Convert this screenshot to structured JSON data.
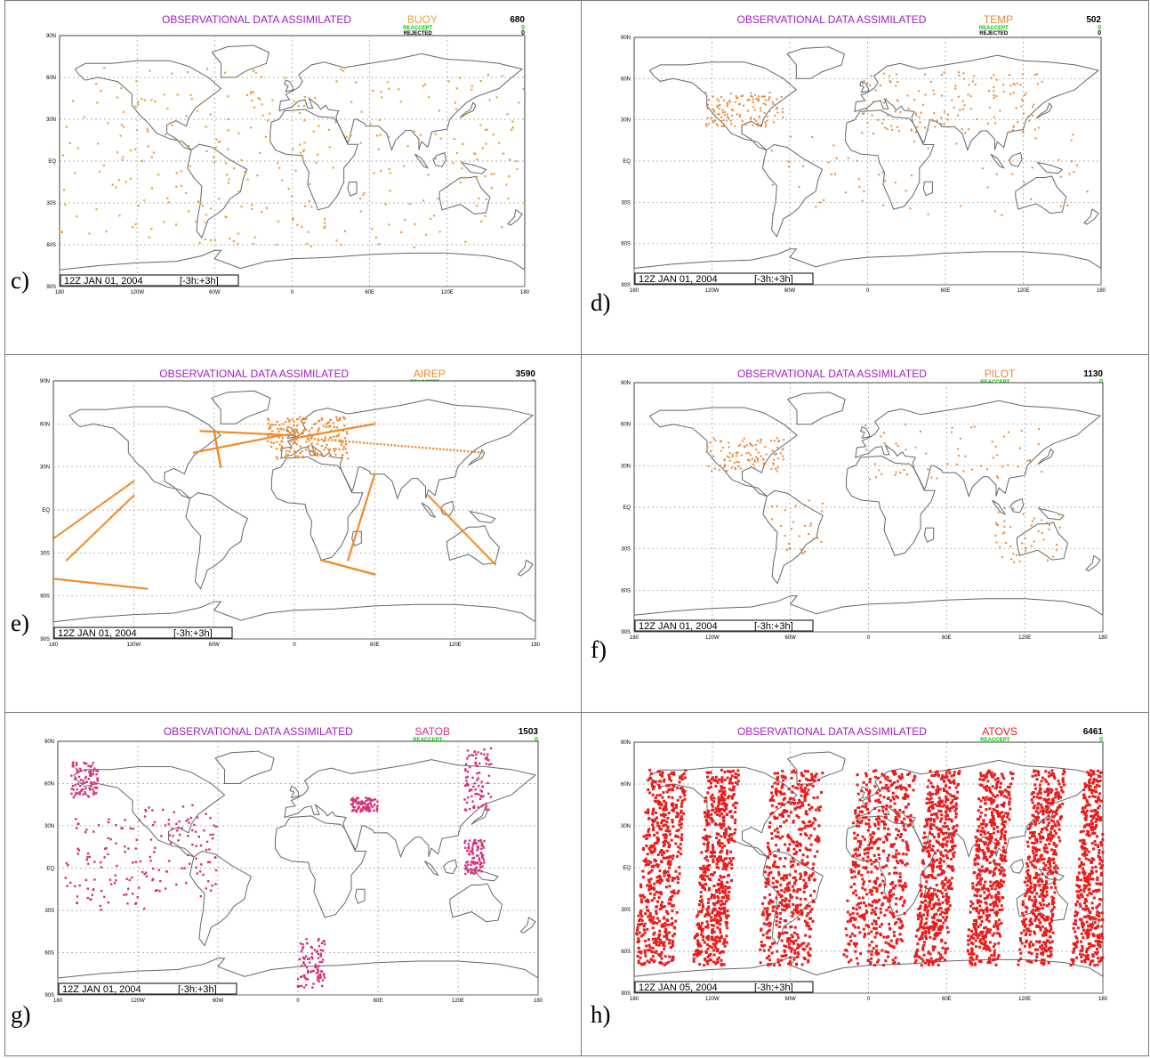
{
  "panels": [
    {
      "caption": "c)",
      "title": "OBSERVATIONAL DATA ASSIMILATED",
      "obs_type": "BUOY",
      "count": "680",
      "reaccept_label": "REACCEPT",
      "reaccept_value": "0",
      "rejected_label": "REJECTED",
      "rejected_value": "0",
      "date": "12Z JAN 01, 2004",
      "window": "[-3h:+3h]",
      "dot_color": "#e8a33a",
      "pattern": "ocean"
    },
    {
      "caption": "d)",
      "title": "OBSERVATIONAL DATA ASSIMILATED",
      "obs_type": "TEMP",
      "count": "502",
      "reaccept_label": "REACCEPT",
      "reaccept_value": "0",
      "rejected_label": "REJECTED",
      "rejected_value": "0",
      "date": "12Z JAN 01, 2004",
      "window": "[-3h:+3h]",
      "dot_color": "#e8883a",
      "pattern": "land"
    },
    {
      "caption": "e)",
      "title": "OBSERVATIONAL DATA ASSIMILATED",
      "obs_type": "AIREP",
      "count": "3590",
      "reaccept_label": "REACCEPT",
      "reaccept_value": "0",
      "rejected_label": "REJECTED",
      "rejected_value": "0",
      "date": "12Z JAN 01, 2004",
      "window": "[-3h:+3h]",
      "dot_color": "#f08a2a",
      "pattern": "tracks"
    },
    {
      "caption": "f)",
      "title": "OBSERVATIONAL DATA ASSIMILATED",
      "obs_type": "PILOT",
      "count": "1130",
      "reaccept_label": "REACCEPT",
      "reaccept_value": "0",
      "rejected_label": "REJECTED",
      "rejected_value": "0",
      "date": "12Z JAN 01, 2004",
      "window": "[-3h:+3h]",
      "dot_color": "#e8883a",
      "pattern": "pilot"
    },
    {
      "caption": "g)",
      "title": "OBSERVATIONAL DATA ASSIMILATED",
      "obs_type": "SATOB",
      "count": "1503",
      "reaccept_label": "REACCEPT",
      "reaccept_value": "0",
      "rejected_label": "REJECTED",
      "rejected_value": "0",
      "date": "12Z JAN 01, 2004",
      "window": "[-3h:+3h]",
      "dot_color": "#d6307a",
      "pattern": "satob"
    },
    {
      "caption": "h)",
      "title": "OBSERVATIONAL DATA ASSIMILATED",
      "obs_type": "ATOVS",
      "count": "6461",
      "reaccept_label": "REACCEPT",
      "reaccept_value": "0",
      "rejected_label": "REJECTED",
      "rejected_value": "0",
      "date": "12Z JAN 05, 2004",
      "window": "[-3h:+3h]",
      "dot_color": "#e81c1c",
      "pattern": "swaths"
    }
  ],
  "axes": {
    "lat_ticks": [
      "90N",
      "60N",
      "30N",
      "EQ",
      "30S",
      "60S",
      "90S"
    ],
    "lon_ticks": [
      "180",
      "120W",
      "60W",
      "0",
      "60E",
      "120E",
      "180"
    ]
  },
  "colors": {
    "title": "#a020c0",
    "accept": "#00cc00",
    "text": "#000000",
    "coast": "#666666",
    "grid": "#999999"
  }
}
